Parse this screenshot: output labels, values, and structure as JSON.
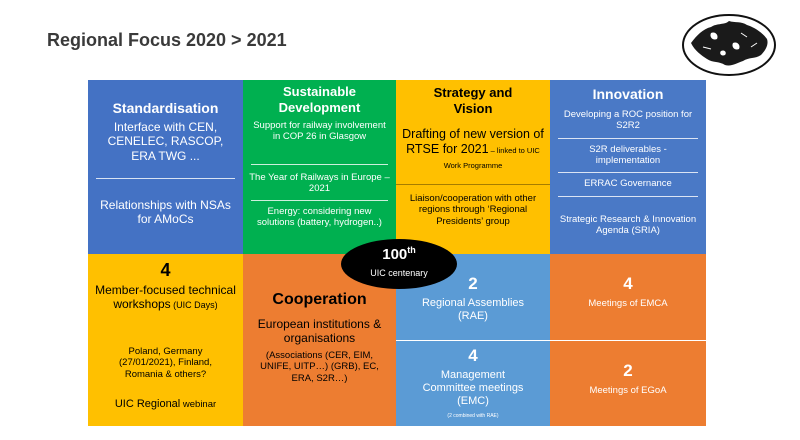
{
  "title": "Regional Focus 2020 > 2021",
  "globe_icon": "europe-globe-icon",
  "centenary": {
    "number": "100",
    "suffix": "th",
    "label": "UIC centenary"
  },
  "standardisation": {
    "heading": "Standardisation",
    "items": [
      "Interface with CEN, CENELEC, RASCOP, ERA TWG ...",
      "Relationships with NSAs for AMoCs"
    ]
  },
  "sustainable": {
    "heading": "Sustainable Development",
    "items": [
      "Support for railway involvement in COP 26 in Glasgow",
      "The Year of Railways in Europe – 2021",
      "Energy: considering new solutions (battery, hydrogen..)"
    ]
  },
  "strategy": {
    "heading": "Strategy and Vision",
    "draft_main": "Drafting of new version of RTSE for 2021",
    "draft_small": " – linked to UIC Work Programme",
    "liaison": "Liaison/cooperation with other regions through ‘Regional Presidents’ group"
  },
  "innovation": {
    "heading": "Innovation",
    "items": [
      "Developing a ROC position for S2R2",
      "S2R deliverables - implementation",
      "ERRAC Governance",
      "Strategic Research & Innovation Agenda (SRIA)"
    ]
  },
  "workshops": {
    "count": "4",
    "line1": "Member-focused technical workshops",
    "line1_small": " (UIC Days)",
    "countries": "Poland, Germany (27/01/2021), Finland, Romania & others?",
    "webinar_main": "UIC Regional",
    "webinar_small": " webinar"
  },
  "cooperation": {
    "heading": "Cooperation",
    "line1": "European institutions & organisations",
    "line2": "(Associations (CER, EIM, UNIFE, UITP…) (GRB), EC, ERA, S2R…)"
  },
  "assemblies": {
    "count": "2",
    "label": "Regional Assemblies (RAE)"
  },
  "emc": {
    "count": "4",
    "label": "Management Committee meetings (EMC)",
    "note": "(2 combined with RAE)"
  },
  "emca": {
    "count": "4",
    "label": "Meetings of EMCA"
  },
  "egoa": {
    "count": "2",
    "label": "Meetings of EGoA"
  }
}
